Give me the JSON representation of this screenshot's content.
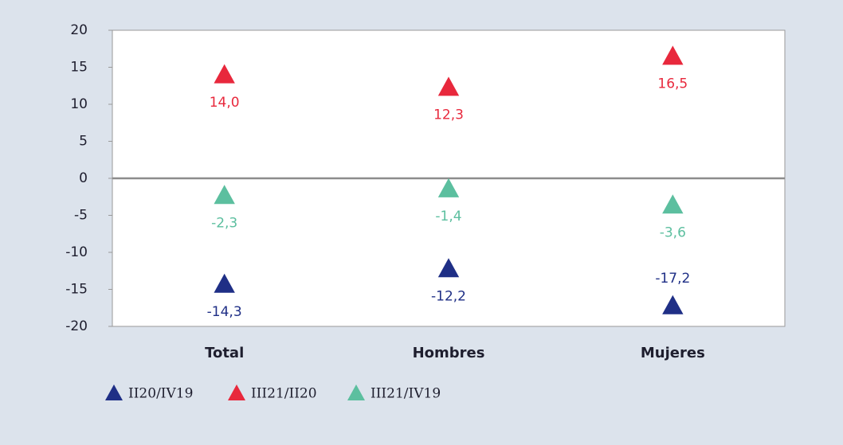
{
  "chart_data": {
    "type": "scatter",
    "categories": [
      "Total",
      "Hombres",
      "Mujeres"
    ],
    "series": [
      {
        "name": "II20/IV19",
        "color": "#1f2f86",
        "values": [
          -14.3,
          -12.2,
          -17.2
        ],
        "value_labels": [
          "-14,3",
          "-12,2",
          "-17,2"
        ]
      },
      {
        "name": "III21/II20",
        "color": "#e8283c",
        "values": [
          14.0,
          12.3,
          16.5
        ],
        "value_labels": [
          "14,0",
          "12,3",
          "16,5"
        ]
      },
      {
        "name": "III21/IV19",
        "color": "#5cbf9f",
        "values": [
          -2.3,
          -1.4,
          -3.6
        ],
        "value_labels": [
          "-2,3",
          "-1,4",
          "-3,6"
        ]
      }
    ],
    "ylim": [
      -20,
      20
    ],
    "yticks": [
      -20,
      -15,
      -10,
      -5,
      0,
      5,
      10,
      15,
      20
    ],
    "legend": "bottom"
  }
}
